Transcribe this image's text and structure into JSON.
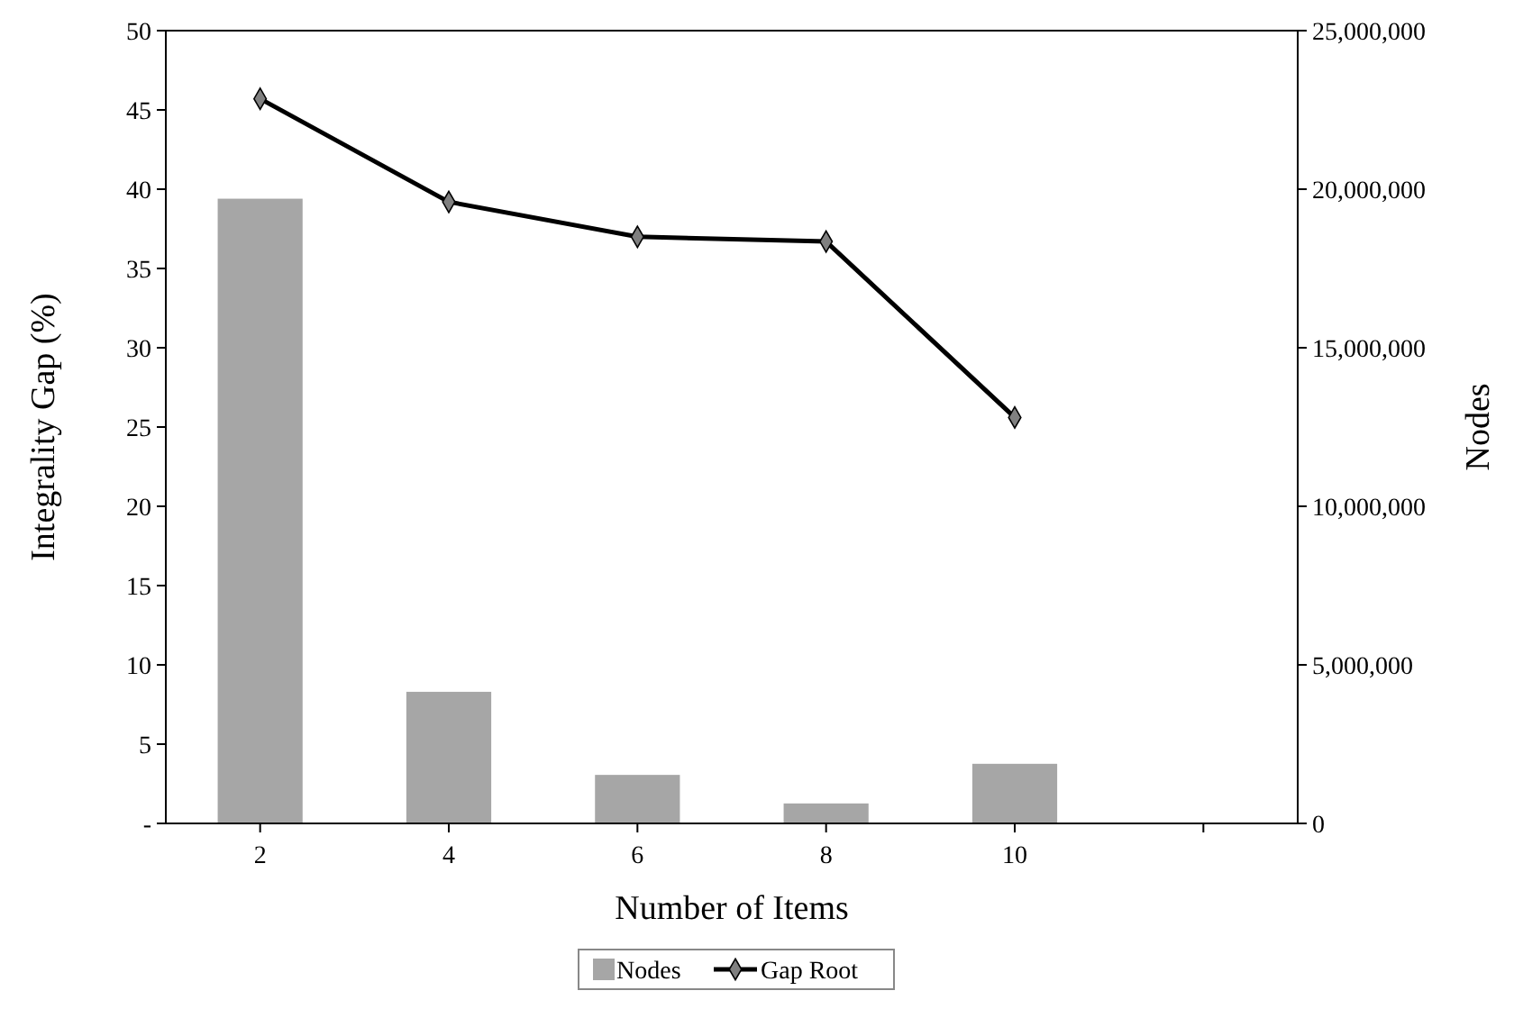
{
  "chart_data": {
    "type": "bar",
    "xlabel": "Number of Items",
    "ylabel": "Integrality Gap (%)",
    "y2label": "Nodes",
    "categories": [
      "2",
      "4",
      "6",
      "8",
      "10",
      null
    ],
    "series": [
      {
        "name": "Nodes",
        "axis": "y2",
        "color": "#a6a6a6",
        "values": [
          19700000,
          4150000,
          1530000,
          630000,
          1880000,
          null
        ]
      },
      {
        "name": "Gap Root",
        "type": "line",
        "color": "#000000",
        "marker": "diamond",
        "values": [
          45.7,
          39.2,
          37.0,
          36.7,
          25.6,
          null
        ]
      }
    ],
    "ylim": [
      0,
      50
    ],
    "yticks": [
      {
        "value": 0,
        "label": "-"
      },
      5,
      10,
      15,
      20,
      25,
      30,
      35,
      40,
      45,
      50
    ],
    "y2lim": [
      0,
      25000000
    ],
    "y2ticks": [
      {
        "value": 0,
        "label": "0"
      },
      {
        "value": 5000000,
        "label": "5,000,000"
      },
      {
        "value": 10000000,
        "label": "10,000,000"
      },
      {
        "value": 15000000,
        "label": "15,000,000"
      },
      {
        "value": 20000000,
        "label": "20,000,000"
      },
      {
        "value": 25000000,
        "label": "25,000,000"
      }
    ],
    "grid": false,
    "legend": "bottom"
  }
}
